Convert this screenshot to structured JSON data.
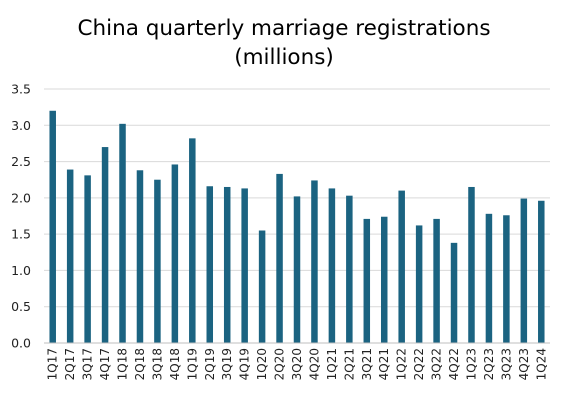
{
  "chart_data": {
    "type": "bar",
    "title_line1": "China quarterly marriage registrations",
    "title_line2": "(millions)",
    "xlabel": "",
    "ylabel": "",
    "ylim": [
      0,
      3.5
    ],
    "yticks": [
      "0.0",
      "0.5",
      "1.0",
      "1.5",
      "2.0",
      "2.5",
      "3.0",
      "3.5"
    ],
    "grid": true,
    "legend": "none",
    "bar_color": "#1b6381",
    "categories": [
      "1Q17",
      "2Q17",
      "3Q17",
      "4Q17",
      "1Q18",
      "2Q18",
      "3Q18",
      "4Q18",
      "1Q19",
      "2Q19",
      "3Q19",
      "4Q19",
      "1Q20",
      "2Q20",
      "3Q20",
      "4Q20",
      "1Q21",
      "2Q21",
      "3Q21",
      "4Q21",
      "1Q22",
      "2Q22",
      "3Q22",
      "4Q22",
      "1Q23",
      "2Q23",
      "3Q23",
      "4Q23",
      "1Q24"
    ],
    "values": [
      3.2,
      2.39,
      2.31,
      2.7,
      3.02,
      2.38,
      2.25,
      2.46,
      2.82,
      2.16,
      2.15,
      2.13,
      1.55,
      2.33,
      2.02,
      2.24,
      2.13,
      2.03,
      1.71,
      1.74,
      2.1,
      1.62,
      1.71,
      1.38,
      2.15,
      1.78,
      1.76,
      1.99,
      1.96
    ]
  }
}
